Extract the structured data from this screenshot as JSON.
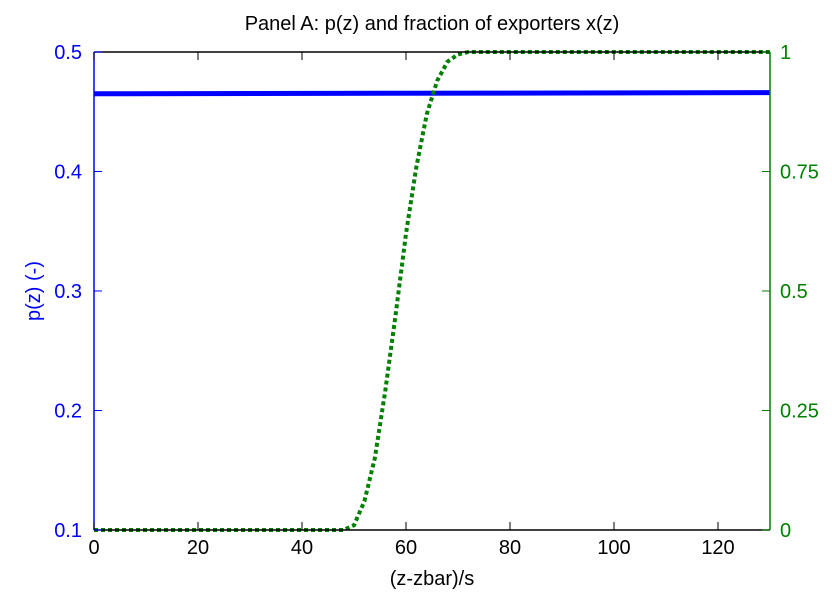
{
  "chart_data": {
    "type": "line",
    "title": "Panel A: p(z) and fraction of exporters x(z)",
    "xlabel": "(z-zbar)/s",
    "ylabel_left": "p(z) (-)",
    "ylabel_right": "",
    "xlim": [
      0,
      130
    ],
    "ylim_left": [
      0.1,
      0.5
    ],
    "ylim_right": [
      0,
      1
    ],
    "xticks": [
      0,
      20,
      40,
      60,
      80,
      100,
      120
    ],
    "yticks_left": [
      "0.1",
      "0.2",
      "0.3",
      "0.4",
      "0.5"
    ],
    "yticks_right": [
      "0",
      "0.25",
      "0.5",
      "0.75",
      "1"
    ],
    "grid": false,
    "colors": {
      "left": "#0000ff",
      "right": "#008000"
    },
    "series": [
      {
        "axis": "left",
        "style": "solid",
        "x": [
          0,
          130
        ],
        "values": [
          0.465,
          0.466
        ]
      },
      {
        "axis": "right",
        "style": "dotted",
        "x": [
          0,
          48,
          50,
          52,
          54,
          56,
          58,
          60,
          62,
          64,
          66,
          68,
          70,
          72,
          74,
          76,
          130
        ],
        "values": [
          0,
          0,
          0.01,
          0.06,
          0.15,
          0.29,
          0.45,
          0.62,
          0.76,
          0.87,
          0.94,
          0.98,
          0.995,
          1,
          1,
          1,
          1
        ]
      }
    ]
  }
}
